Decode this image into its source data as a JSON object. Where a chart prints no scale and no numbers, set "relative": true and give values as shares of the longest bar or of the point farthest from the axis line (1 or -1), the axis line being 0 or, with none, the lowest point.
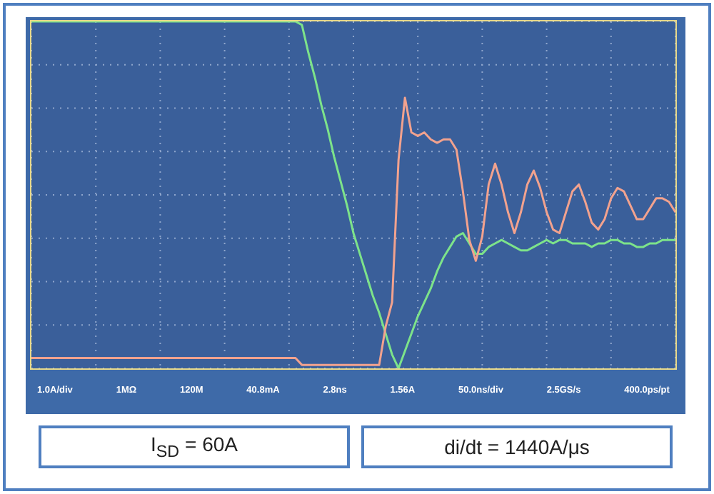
{
  "chart_data": {
    "type": "line",
    "relative": true,
    "grid": true,
    "marker": "none",
    "line_style": "solid",
    "categories": [
      null,
      null,
      null,
      null,
      null,
      null,
      null,
      null,
      null,
      null,
      null,
      null,
      null,
      null,
      null,
      null,
      null,
      null,
      null,
      null,
      null,
      null,
      null,
      null,
      null,
      null,
      null,
      null,
      null,
      null,
      null,
      null,
      null,
      null,
      null,
      null,
      null,
      null,
      null,
      null,
      null,
      null,
      null,
      null,
      null,
      null,
      null,
      null,
      null,
      null,
      null,
      null,
      null,
      null,
      null,
      null,
      null,
      null,
      null,
      null,
      null,
      null,
      null,
      null,
      null,
      null,
      null,
      null,
      null,
      null,
      null,
      null,
      null,
      null,
      null,
      null,
      null,
      null,
      null,
      null,
      null,
      null,
      null,
      null,
      null,
      null,
      null,
      null,
      null,
      null,
      null,
      null,
      null,
      null,
      null,
      null,
      null,
      null,
      null,
      null,
      null
    ],
    "series": [
      {
        "color": "#7de38a",
        "values": [
          1,
          1,
          1,
          1,
          1,
          1,
          1,
          1,
          1,
          1,
          1,
          1,
          1,
          1,
          1,
          1,
          1,
          1,
          1,
          1,
          1,
          1,
          1,
          1,
          1,
          1,
          1,
          1,
          1,
          1,
          1,
          1,
          1,
          1,
          1,
          1,
          1,
          1,
          1,
          1,
          1,
          1,
          0.99,
          0.91,
          0.84,
          0.76,
          0.69,
          0.61,
          0.54,
          0.47,
          0.39,
          0.33,
          0.27,
          0.21,
          0.16,
          0.1,
          0.04,
          0,
          0.05,
          0.1,
          0.15,
          0.19,
          0.23,
          0.28,
          0.32,
          0.35,
          0.38,
          0.39,
          0.36,
          0.33,
          0.33,
          0.35,
          0.36,
          0.37,
          0.36,
          0.35,
          0.34,
          0.34,
          0.35,
          0.36,
          0.37,
          0.36,
          0.37,
          0.37,
          0.36,
          0.36,
          0.36,
          0.35,
          0.36,
          0.36,
          0.37,
          0.37,
          0.36,
          0.36,
          0.35,
          0.35,
          0.36,
          0.36,
          0.37,
          0.37,
          0.37
        ]
      },
      {
        "color": "#f2a28e",
        "values": [
          0.03,
          0.03,
          0.03,
          0.03,
          0.03,
          0.03,
          0.03,
          0.03,
          0.03,
          0.03,
          0.03,
          0.03,
          0.03,
          0.03,
          0.03,
          0.03,
          0.03,
          0.03,
          0.03,
          0.03,
          0.03,
          0.03,
          0.03,
          0.03,
          0.03,
          0.03,
          0.03,
          0.03,
          0.03,
          0.03,
          0.03,
          0.03,
          0.03,
          0.03,
          0.03,
          0.03,
          0.03,
          0.03,
          0.03,
          0.03,
          0.03,
          0.03,
          0.01,
          0.01,
          0.01,
          0.01,
          0.01,
          0.01,
          0.01,
          0.01,
          0.01,
          0.01,
          0.01,
          0.01,
          0.01,
          0.12,
          0.19,
          0.6,
          0.78,
          0.68,
          0.67,
          0.68,
          0.66,
          0.65,
          0.66,
          0.66,
          0.63,
          0.51,
          0.37,
          0.31,
          0.38,
          0.53,
          0.59,
          0.53,
          0.45,
          0.39,
          0.45,
          0.53,
          0.57,
          0.52,
          0.45,
          0.4,
          0.39,
          0.45,
          0.51,
          0.53,
          0.48,
          0.42,
          0.4,
          0.43,
          0.49,
          0.52,
          0.51,
          0.47,
          0.43,
          0.43,
          0.46,
          0.49,
          0.49,
          0.48,
          0.45
        ]
      }
    ],
    "annotations": [
      "1.0A/div",
      "1MΩ",
      "120M",
      "40.8mA",
      "2.8ns",
      "1.56A",
      "50.0ns/div",
      "2.5GS/s",
      "400.0ps/pt",
      "I$_{SD}$ = 60A",
      "di/dt = 1440A/μs"
    ]
  }
}
